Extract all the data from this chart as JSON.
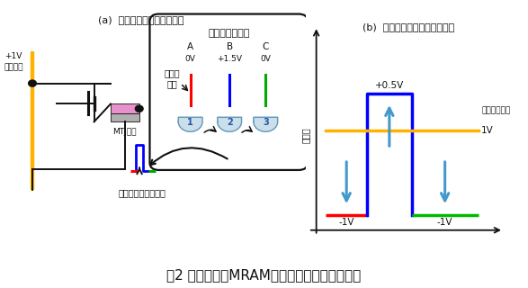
{
  "title": "図2 電圧トルクMRAM用書き込み回路の概念図",
  "title_fontsize": 11,
  "label_a_title": "(a)  書き込み回路の基本構成",
  "label_b_title": "(b)  素子にかかる書き込み電圧",
  "bg_color": "#ffffff",
  "text_color": "#111111",
  "dummy_bit_label": "ダミービット線",
  "col_A_label": "A",
  "col_B_label": "B",
  "col_C_label": "C",
  "col_A_volt": "0V",
  "col_B_volt": "+1.5V",
  "col_C_volt": "0V",
  "trigger_label": "トリガ\n信号",
  "pulse_label": "高速パルス電圧生成",
  "bit_line_label": "+1V\nビット線",
  "mtj_label": "MTJ素子",
  "voltage_axis_label": "電圧値",
  "bit_voltage_label": "ビット線電圧",
  "plus05_label": "+0.5V",
  "minus1_left_label": "-1V",
  "minus1_right_label": "-1V",
  "bit_1V_label": "1V"
}
